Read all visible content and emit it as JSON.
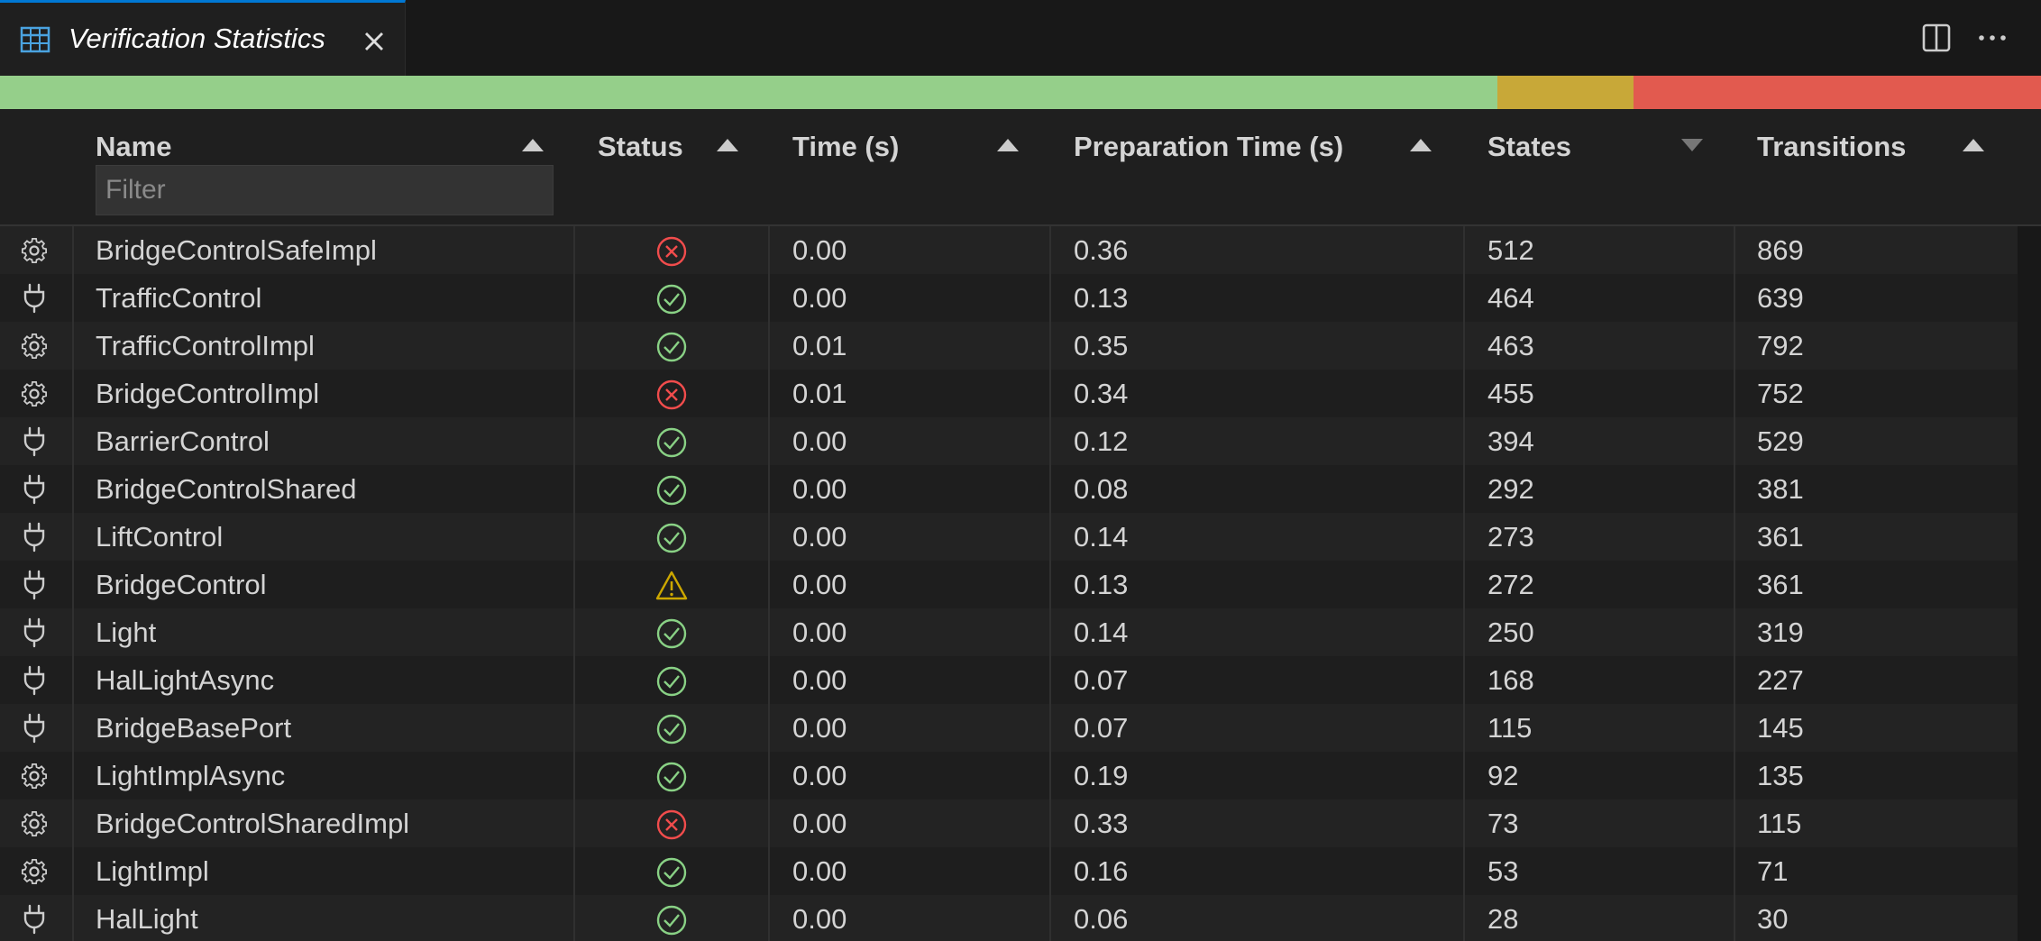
{
  "tab": {
    "title": "Verification Statistics"
  },
  "summary_bar": {
    "green": "#95cf8a",
    "yellow": "#c8a838",
    "red": "#e25a4f"
  },
  "columns": {
    "name": "Name",
    "status": "Status",
    "time": "Time (s)",
    "prep": "Preparation Time (s)",
    "states": "States",
    "transitions": "Transitions"
  },
  "filter": {
    "placeholder": "Filter",
    "value": ""
  },
  "rows": [
    {
      "kind": "gear-icon",
      "name": "BridgeControlSafeImpl",
      "status": "error",
      "time": "0.00",
      "prep": "0.36",
      "states": "512",
      "transitions": "869"
    },
    {
      "kind": "plug-icon",
      "name": "TrafficControl",
      "status": "ok",
      "time": "0.00",
      "prep": "0.13",
      "states": "464",
      "transitions": "639"
    },
    {
      "kind": "gear-icon",
      "name": "TrafficControlImpl",
      "status": "ok",
      "time": "0.01",
      "prep": "0.35",
      "states": "463",
      "transitions": "792"
    },
    {
      "kind": "gear-icon",
      "name": "BridgeControlImpl",
      "status": "error",
      "time": "0.01",
      "prep": "0.34",
      "states": "455",
      "transitions": "752"
    },
    {
      "kind": "plug-icon",
      "name": "BarrierControl",
      "status": "ok",
      "time": "0.00",
      "prep": "0.12",
      "states": "394",
      "transitions": "529"
    },
    {
      "kind": "plug-icon",
      "name": "BridgeControlShared",
      "status": "ok",
      "time": "0.00",
      "prep": "0.08",
      "states": "292",
      "transitions": "381"
    },
    {
      "kind": "plug-icon",
      "name": "LiftControl",
      "status": "ok",
      "time": "0.00",
      "prep": "0.14",
      "states": "273",
      "transitions": "361"
    },
    {
      "kind": "plug-icon",
      "name": "BridgeControl",
      "status": "warning",
      "time": "0.00",
      "prep": "0.13",
      "states": "272",
      "transitions": "361"
    },
    {
      "kind": "plug-icon",
      "name": "Light",
      "status": "ok",
      "time": "0.00",
      "prep": "0.14",
      "states": "250",
      "transitions": "319"
    },
    {
      "kind": "plug-icon",
      "name": "HalLightAsync",
      "status": "ok",
      "time": "0.00",
      "prep": "0.07",
      "states": "168",
      "transitions": "227"
    },
    {
      "kind": "plug-icon",
      "name": "BridgeBasePort",
      "status": "ok",
      "time": "0.00",
      "prep": "0.07",
      "states": "115",
      "transitions": "145"
    },
    {
      "kind": "gear-icon",
      "name": "LightImplAsync",
      "status": "ok",
      "time": "0.00",
      "prep": "0.19",
      "states": "92",
      "transitions": "135"
    },
    {
      "kind": "gear-icon",
      "name": "BridgeControlSharedImpl",
      "status": "error",
      "time": "0.00",
      "prep": "0.33",
      "states": "73",
      "transitions": "115"
    },
    {
      "kind": "gear-icon",
      "name": "LightImpl",
      "status": "ok",
      "time": "0.00",
      "prep": "0.16",
      "states": "53",
      "transitions": "71"
    },
    {
      "kind": "plug-icon",
      "name": "HalLight",
      "status": "ok",
      "time": "0.00",
      "prep": "0.06",
      "states": "28",
      "transitions": "30"
    }
  ]
}
